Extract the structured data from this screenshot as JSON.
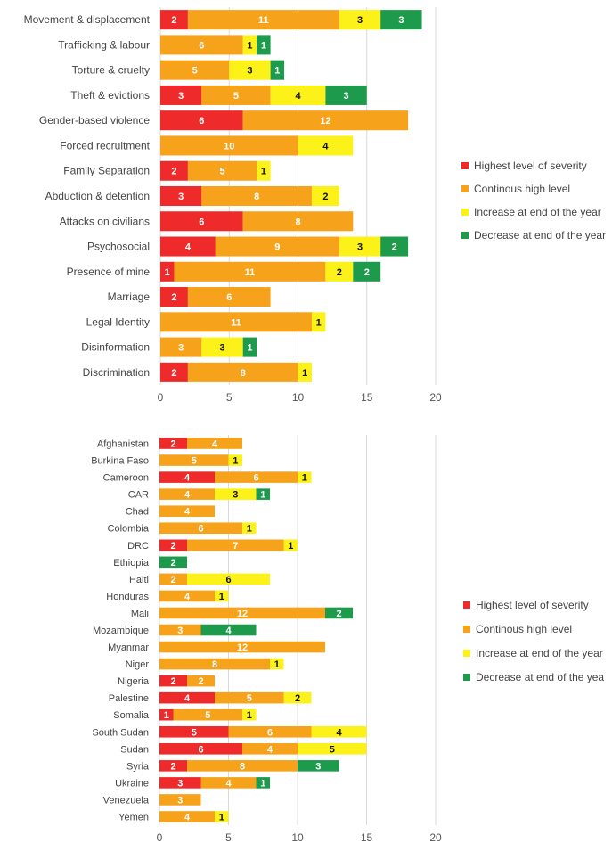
{
  "legend": {
    "labels": [
      "Highest level of severity",
      "Continous high level",
      "Increase at end of the year",
      "Decrease at end of the year"
    ],
    "labels2": [
      "Highest level of severity",
      "Continous high level",
      "Increase at end of the year",
      "Decrease at end of the yea"
    ]
  },
  "chart_data": [
    {
      "type": "bar",
      "orientation": "horizontal",
      "stacked": true,
      "categories": [
        "Movement & displacement",
        "Trafficking & labour",
        "Torture & cruelty",
        "Theft & evictions",
        "Gender-based violence",
        "Forced recruitment",
        "Family Separation",
        "Abduction & detention",
        "Attacks on civilians",
        "Psychosocial",
        "Presence of mine",
        "Marriage",
        "Legal Identity",
        "Disinformation",
        "Discrimination"
      ],
      "series": [
        {
          "name": "Highest level of severity",
          "color": "#ee2a2a",
          "values": [
            2,
            0,
            0,
            3,
            6,
            0,
            2,
            3,
            6,
            4,
            1,
            2,
            0,
            0,
            2
          ]
        },
        {
          "name": "Continous high level",
          "color": "#f7a21b",
          "values": [
            11,
            6,
            5,
            5,
            12,
            10,
            5,
            8,
            8,
            9,
            11,
            6,
            11,
            3,
            8
          ]
        },
        {
          "name": "Increase at end of the year",
          "color": "#fcf21a",
          "values": [
            3,
            1,
            3,
            4,
            0,
            4,
            1,
            2,
            0,
            3,
            2,
            0,
            1,
            3,
            1
          ]
        },
        {
          "name": "Decrease at end of the year",
          "color": "#1e9a4c",
          "values": [
            3,
            1,
            1,
            3,
            0,
            0,
            0,
            0,
            0,
            2,
            2,
            0,
            0,
            1,
            0
          ]
        }
      ],
      "xlim": [
        0,
        20
      ],
      "xticks": [
        "0",
        "5",
        "10",
        "15",
        "20"
      ],
      "grid": true,
      "legend_position": "right"
    },
    {
      "type": "bar",
      "orientation": "horizontal",
      "stacked": true,
      "categories": [
        "Afghanistan",
        "Burkina Faso",
        "Cameroon",
        "CAR",
        "Chad",
        "Colombia",
        "DRC",
        "Ethiopia",
        "Haiti",
        "Honduras",
        "Mali",
        "Mozambique",
        "Myanmar",
        "Niger",
        "Nigeria",
        "Palestine",
        "Somalia",
        "South Sudan",
        "Sudan",
        "Syria",
        "Ukraine",
        "Venezuela",
        "Yemen"
      ],
      "series": [
        {
          "name": "Highest level of severity",
          "color": "#ee2a2a",
          "values": [
            2,
            0,
            4,
            0,
            0,
            0,
            2,
            0,
            0,
            0,
            0,
            0,
            0,
            0,
            2,
            4,
            1,
            5,
            6,
            2,
            3,
            0,
            0
          ]
        },
        {
          "name": "Continous high level",
          "color": "#f7a21b",
          "values": [
            4,
            5,
            6,
            4,
            4,
            6,
            7,
            0,
            2,
            4,
            12,
            3,
            12,
            8,
            2,
            5,
            5,
            6,
            4,
            8,
            4,
            3,
            4
          ]
        },
        {
          "name": "Increase at end of the year",
          "color": "#fcf21a",
          "values": [
            0,
            1,
            1,
            3,
            0,
            1,
            1,
            0,
            6,
            1,
            0,
            0,
            0,
            1,
            0,
            2,
            1,
            4,
            5,
            0,
            0,
            0,
            1
          ]
        },
        {
          "name": "Decrease at end of the yea",
          "color": "#1e9a4c",
          "values": [
            0,
            0,
            0,
            1,
            0,
            0,
            0,
            2,
            0,
            0,
            2,
            4,
            0,
            0,
            0,
            0,
            0,
            0,
            0,
            3,
            1,
            0,
            0
          ]
        }
      ],
      "xlim": [
        0,
        20
      ],
      "xticks": [
        "0",
        "5",
        "10",
        "15",
        "20"
      ],
      "grid": true,
      "legend_position": "right"
    }
  ]
}
